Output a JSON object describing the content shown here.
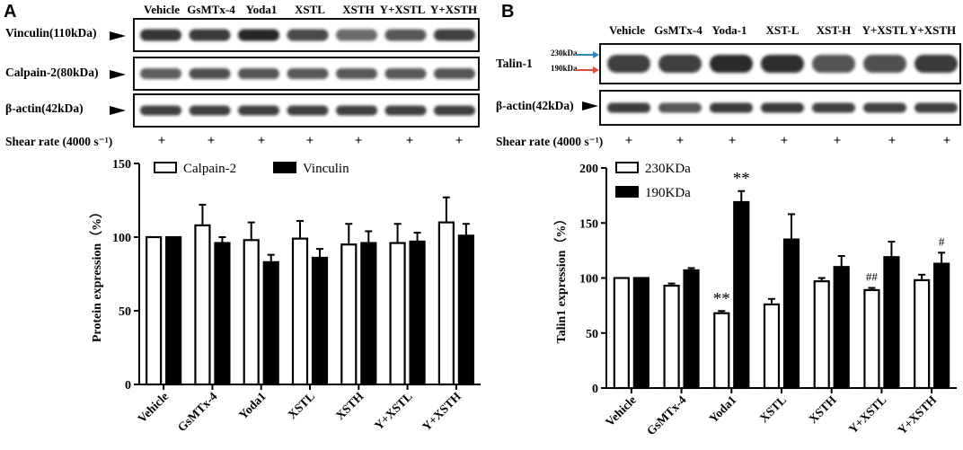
{
  "panel_a": {
    "letter": "A",
    "lanes": [
      "Vehicle",
      "GsMTx-4",
      "Yoda1",
      "XSTL",
      "XSTH",
      "Y+XSTL",
      "Y+XSTH"
    ],
    "blots": [
      {
        "label": "Vinculin(110kDa)",
        "intensity": [
          0.85,
          0.82,
          0.92,
          0.75,
          0.6,
          0.68,
          0.8
        ]
      },
      {
        "label": "Calpain-2(80kDa)",
        "intensity": [
          0.65,
          0.72,
          0.7,
          0.68,
          0.68,
          0.68,
          0.7
        ]
      },
      {
        "label": "β-actin(42kDa)",
        "intensity": [
          0.8,
          0.8,
          0.8,
          0.8,
          0.8,
          0.8,
          0.8
        ]
      }
    ],
    "shear_label": "Shear rate (4000 s⁻¹)",
    "shear_marks": [
      "+",
      "+",
      "+",
      "+",
      "+",
      "+",
      "+"
    ]
  },
  "panel_b": {
    "letter": "B",
    "lanes": [
      "Vehicle",
      "GsMTx-4",
      "Yoda-1",
      "XST-L",
      "XST-H",
      "Y+XSTL",
      "Y+XSTH"
    ],
    "talin_label": "Talin-1",
    "kda_upper": "230kDa",
    "kda_lower": "190kDa",
    "arrow_upper_color": "#2e86c1",
    "arrow_lower_color": "#e74c3c",
    "actin_label": "β-actin(42kDa)",
    "talin_intensity": [
      0.8,
      0.8,
      0.9,
      0.88,
      0.7,
      0.72,
      0.82
    ],
    "actin_intensity": [
      0.82,
      0.7,
      0.82,
      0.82,
      0.8,
      0.78,
      0.8
    ],
    "shear_label": "Shear rate (4000 s⁻¹)",
    "shear_marks": [
      "+",
      "+",
      "+",
      "+",
      "+",
      "+",
      "+"
    ]
  },
  "chart_data": [
    {
      "type": "bar",
      "panel": "A",
      "ylabel": "Protein expression（%）",
      "ylim": [
        0,
        150
      ],
      "yticks": [
        0,
        50,
        100,
        150
      ],
      "categories": [
        "Vehicle",
        "GsMTx-4",
        "Yoda1",
        "XSTL",
        "XSTH",
        "Y+XSTL",
        "Y+XSTH"
      ],
      "legend_position": "top-left",
      "series": [
        {
          "name": "Calpain-2",
          "fill": "#ffffff",
          "values": [
            100,
            108,
            98,
            99,
            95,
            96,
            110
          ],
          "errors": [
            0,
            14,
            12,
            12,
            14,
            13,
            17
          ]
        },
        {
          "name": "Vinculin",
          "fill": "#000000",
          "values": [
            100,
            96,
            83,
            86,
            96,
            97,
            101
          ],
          "errors": [
            0,
            4,
            5,
            6,
            8,
            6,
            8
          ]
        }
      ]
    },
    {
      "type": "bar",
      "panel": "B",
      "ylabel": "Talin1 expression（%）",
      "ylim": [
        0,
        200
      ],
      "yticks": [
        0,
        50,
        100,
        150,
        200
      ],
      "categories": [
        "Vehicle",
        "GsMTx-4",
        "Yoda1",
        "XSTL",
        "XSTH",
        "Y+XSTL",
        "Y+XSTH"
      ],
      "legend_position": "top-left",
      "series": [
        {
          "name": "230KDa",
          "fill": "#ffffff",
          "values": [
            100,
            93,
            68,
            76,
            97,
            89,
            98
          ],
          "errors": [
            0,
            2,
            2,
            5,
            3,
            2,
            5
          ],
          "annotations": [
            "",
            "",
            "**",
            "",
            "",
            "##",
            ""
          ]
        },
        {
          "name": "190KDa",
          "fill": "#000000",
          "values": [
            100,
            107,
            169,
            135,
            110,
            119,
            113
          ],
          "errors": [
            0,
            2,
            10,
            23,
            10,
            14,
            10
          ],
          "annotations": [
            "",
            "",
            "**",
            "",
            "",
            "",
            "#"
          ]
        }
      ]
    }
  ]
}
